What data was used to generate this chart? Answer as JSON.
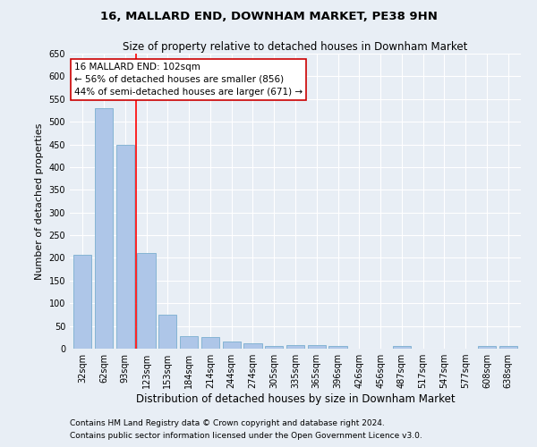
{
  "title": "16, MALLARD END, DOWNHAM MARKET, PE38 9HN",
  "subtitle": "Size of property relative to detached houses in Downham Market",
  "xlabel": "Distribution of detached houses by size in Downham Market",
  "ylabel": "Number of detached properties",
  "footnote1": "Contains HM Land Registry data © Crown copyright and database right 2024.",
  "footnote2": "Contains public sector information licensed under the Open Government Licence v3.0.",
  "categories": [
    "32sqm",
    "62sqm",
    "93sqm",
    "123sqm",
    "153sqm",
    "184sqm",
    "214sqm",
    "244sqm",
    "274sqm",
    "305sqm",
    "335sqm",
    "365sqm",
    "396sqm",
    "426sqm",
    "456sqm",
    "487sqm",
    "517sqm",
    "547sqm",
    "577sqm",
    "608sqm",
    "638sqm"
  ],
  "values": [
    207,
    530,
    450,
    210,
    75,
    27,
    26,
    15,
    12,
    6,
    8,
    7,
    5,
    0,
    0,
    5,
    0,
    0,
    0,
    5,
    5
  ],
  "bar_color": "#aec6e8",
  "bar_edge_color": "#7aaed0",
  "red_line_x": 2.5,
  "property_label": "16 MALLARD END: 102sqm",
  "annotation_line1": "← 56% of detached houses are smaller (856)",
  "annotation_line2": "44% of semi-detached houses are larger (671) →",
  "annotation_box_color": "#ffffff",
  "annotation_box_edge": "#cc0000",
  "ylim": [
    0,
    650
  ],
  "yticks": [
    0,
    50,
    100,
    150,
    200,
    250,
    300,
    350,
    400,
    450,
    500,
    550,
    600,
    650
  ],
  "bg_color": "#e8eef5",
  "plot_bg_color": "#e8eef5",
  "title_fontsize": 9.5,
  "subtitle_fontsize": 8.5,
  "xlabel_fontsize": 8.5,
  "ylabel_fontsize": 8,
  "tick_fontsize": 7,
  "annotation_fontsize": 7.5,
  "footnote_fontsize": 6.5
}
